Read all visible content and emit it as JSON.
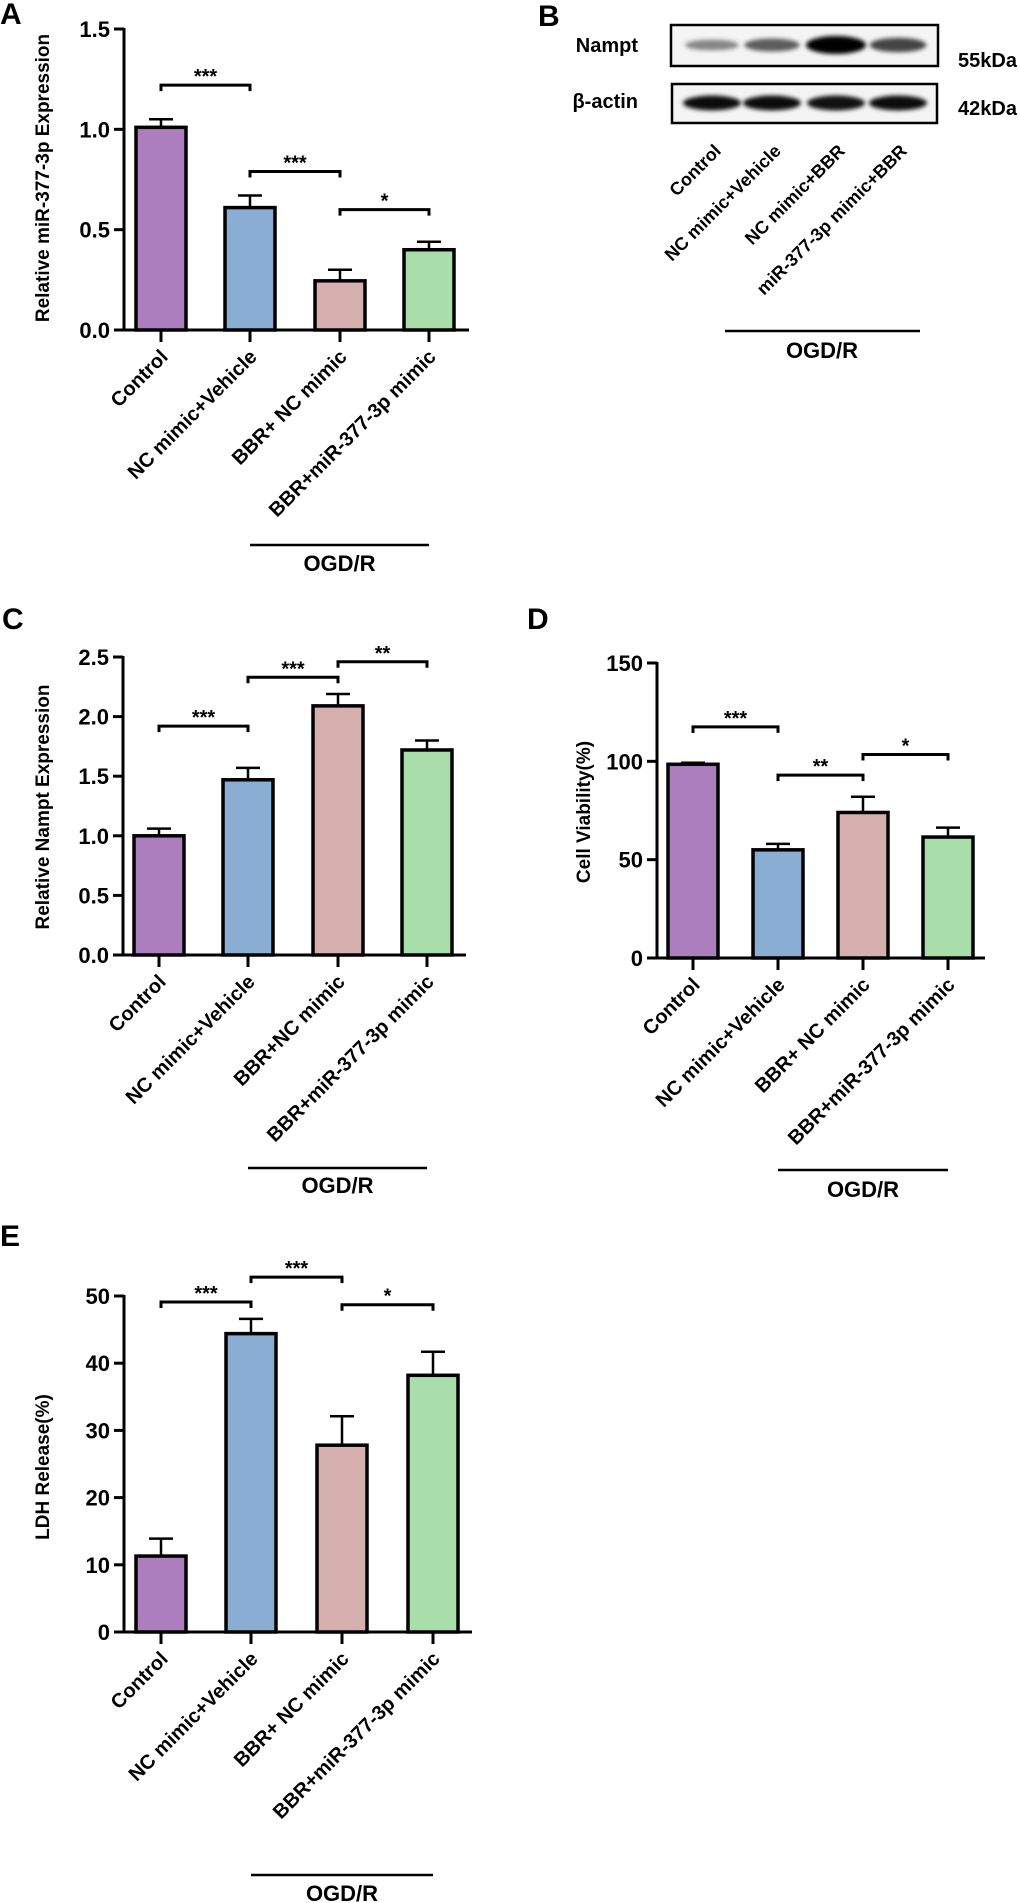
{
  "panel_labels": {
    "A": "A",
    "B": "B",
    "C": "C",
    "D": "D",
    "E": "E"
  },
  "colors": {
    "control": "#AD7EBE",
    "vehicle": "#8AADD3",
    "bbr_nc": "#D6AFAF",
    "bbr_mir": "#A9DDAA",
    "axis": "#000000"
  },
  "blot": {
    "panel": "B",
    "lanes": [
      "Control",
      "NC mimic+Vehicle",
      "NC mimic+BBR",
      "miR-377-3p mimic+BBR"
    ],
    "proteins": [
      {
        "name": "Nampt",
        "size": "55kDa",
        "band_intensity": [
          0.45,
          0.62,
          1.0,
          0.72
        ]
      },
      {
        "name": "β-actin",
        "size": "42kDa",
        "band_intensity": [
          0.95,
          0.95,
          0.93,
          0.95
        ]
      }
    ],
    "group_label": "OGD/R",
    "group_lanes": [
      1,
      3
    ]
  },
  "chart_data": [
    {
      "panel": "A",
      "type": "bar",
      "title": "",
      "categories": [
        "Control",
        "NC mimic+Vehicle",
        "BBR+ NC mimic",
        "BBR+miR-377-3p mimic"
      ],
      "values": [
        1.01,
        0.61,
        0.245,
        0.4
      ],
      "errors": [
        0.04,
        0.06,
        0.055,
        0.04
      ],
      "xlabel": "",
      "ylabel": "Relative miR-377-3p Expression",
      "ylim": [
        0,
        1.5
      ],
      "yticks": [
        0,
        0.5,
        1.0,
        1.5
      ],
      "ytick_labels": [
        "0.0",
        "0.5",
        "1.0",
        "1.5"
      ],
      "significance": [
        {
          "from": 0,
          "to": 1,
          "y": 1.22,
          "label": "***"
        },
        {
          "from": 1,
          "to": 2,
          "y": 0.79,
          "label": "***"
        },
        {
          "from": 2,
          "to": 3,
          "y": 0.6,
          "label": "*"
        }
      ],
      "group_label": "OGD/R",
      "group_categories": [
        1,
        3
      ]
    },
    {
      "panel": "C",
      "type": "bar",
      "title": "",
      "categories": [
        "Control",
        "NC mimic+Vehicle",
        "BBR+NC mimic",
        "BBR+miR-377-3p mimic"
      ],
      "values": [
        1.0,
        1.47,
        2.09,
        1.72
      ],
      "errors": [
        0.06,
        0.1,
        0.1,
        0.08
      ],
      "xlabel": "",
      "ylabel": "Relative Nampt Expression",
      "ylim": [
        0,
        2.5
      ],
      "yticks": [
        0,
        0.5,
        1.0,
        1.5,
        2.0,
        2.5
      ],
      "ytick_labels": [
        "0.0",
        "0.5",
        "1.0",
        "1.5",
        "2.0",
        "2.5"
      ],
      "significance": [
        {
          "from": 0,
          "to": 1,
          "y": 1.92,
          "label": "***"
        },
        {
          "from": 1,
          "to": 2,
          "y": 2.33,
          "label": "***"
        },
        {
          "from": 2,
          "to": 3,
          "y": 2.46,
          "label": "**"
        }
      ],
      "group_label": "OGD/R",
      "group_categories": [
        1,
        3
      ]
    },
    {
      "panel": "D",
      "type": "bar",
      "title": "",
      "categories": [
        "Control",
        "NC mimic+Vehicle",
        "BBR+ NC mimic",
        "BBR+miR-377-3p mimic"
      ],
      "values": [
        98.5,
        55,
        74,
        61.5
      ],
      "errors": [
        0.8,
        3,
        8,
        4.8
      ],
      "xlabel": "",
      "ylabel": "Cell Viability(%)",
      "ylim": [
        0,
        150
      ],
      "yticks": [
        0,
        50,
        100,
        150
      ],
      "ytick_labels": [
        "0",
        "50",
        "100",
        "150"
      ],
      "significance": [
        {
          "from": 0,
          "to": 1,
          "y": 117.5,
          "label": "***"
        },
        {
          "from": 1,
          "to": 2,
          "y": 93,
          "label": "**"
        },
        {
          "from": 2,
          "to": 3,
          "y": 103.5,
          "label": "*"
        }
      ],
      "group_label": "OGD/R",
      "group_categories": [
        1,
        3
      ]
    },
    {
      "panel": "E",
      "type": "bar",
      "title": "",
      "categories": [
        "Control",
        "NC mimic+Vehicle",
        "BBR+ NC mimic",
        "BBR+miR-377-3p mimic"
      ],
      "values": [
        11.3,
        44.4,
        27.8,
        38.2
      ],
      "errors": [
        2.6,
        2.2,
        4.3,
        3.5
      ],
      "xlabel": "",
      "ylabel": "LDH Release(%)",
      "ylim": [
        0,
        50
      ],
      "yticks": [
        0,
        10,
        20,
        30,
        40,
        50
      ],
      "ytick_labels": [
        "0",
        "10",
        "20",
        "30",
        "40",
        "50"
      ],
      "significance": [
        {
          "from": 0,
          "to": 1,
          "y": 49.1,
          "label": "***"
        },
        {
          "from": 1,
          "to": 2,
          "y": 52.8,
          "label": "***"
        },
        {
          "from": 2,
          "to": 3,
          "y": 48.7,
          "label": "*"
        }
      ],
      "group_label": "OGD/R",
      "group_categories": [
        1,
        3
      ]
    }
  ]
}
